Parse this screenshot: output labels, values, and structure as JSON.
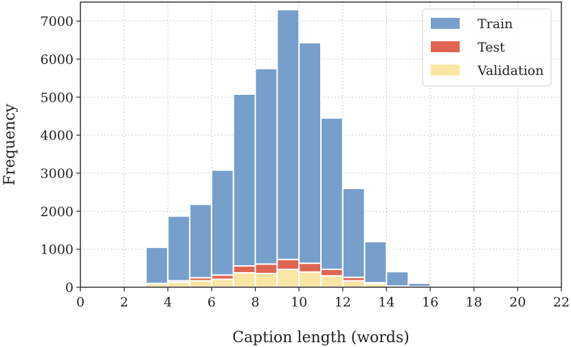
{
  "chart_data": {
    "type": "bar",
    "stacked": true,
    "title": "",
    "xlabel": "Caption length (words)",
    "ylabel": "Frequency",
    "xlim": [
      0,
      22
    ],
    "ylim": [
      0,
      7500
    ],
    "xticks": [
      0,
      2,
      4,
      6,
      8,
      10,
      12,
      14,
      16,
      18,
      20,
      22
    ],
    "yticks": [
      0,
      1000,
      2000,
      3000,
      4000,
      5000,
      6000,
      7000
    ],
    "grid": true,
    "legend_position": "top-right",
    "bin_width": 1,
    "x": [
      3.5,
      4.5,
      5.5,
      6.5,
      7.5,
      8.5,
      9.5,
      10.5,
      11.5,
      12.5,
      13.5,
      14.5,
      15.5
    ],
    "series": [
      {
        "name": "Validation",
        "color": "#fbe5a5",
        "values": [
          90,
          130,
          170,
          210,
          380,
          360,
          470,
          400,
          300,
          170,
          90,
          20,
          10
        ]
      },
      {
        "name": "Test",
        "color": "#e06452",
        "values": [
          10,
          40,
          80,
          110,
          180,
          250,
          260,
          230,
          170,
          90,
          30,
          10,
          5
        ]
      },
      {
        "name": "Train",
        "color": "#779fcb",
        "values": [
          950,
          1700,
          1930,
          2760,
          4520,
          5140,
          6570,
          5800,
          3980,
          2340,
          1080,
          380,
          90
        ]
      }
    ],
    "legend_order": [
      "Train",
      "Test",
      "Validation"
    ]
  }
}
